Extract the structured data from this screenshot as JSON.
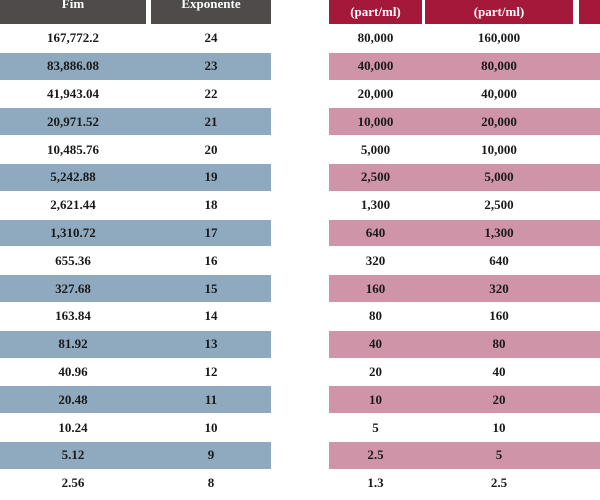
{
  "left_table": {
    "headers": [
      "Fim",
      "Exponente"
    ],
    "rows": [
      {
        "fim": "167,772.2",
        "exp": "24"
      },
      {
        "fim": "83,886.08",
        "exp": "23"
      },
      {
        "fim": "41,943.04",
        "exp": "22"
      },
      {
        "fim": "20,971.52",
        "exp": "21"
      },
      {
        "fim": "10,485.76",
        "exp": "20"
      },
      {
        "fim": "5,242.88",
        "exp": "19"
      },
      {
        "fim": "2,621.44",
        "exp": "18"
      },
      {
        "fim": "1,310.72",
        "exp": "17"
      },
      {
        "fim": "655.36",
        "exp": "16"
      },
      {
        "fim": "327.68",
        "exp": "15"
      },
      {
        "fim": "163.84",
        "exp": "14"
      },
      {
        "fim": "81.92",
        "exp": "13"
      },
      {
        "fim": "40.96",
        "exp": "12"
      },
      {
        "fim": "20.48",
        "exp": "11"
      },
      {
        "fim": "10.24",
        "exp": "10"
      },
      {
        "fim": "5.12",
        "exp": "9"
      },
      {
        "fim": "2.56",
        "exp": "8"
      }
    ]
  },
  "right_table": {
    "headers": [
      "(part/ml)",
      "(part/ml)",
      ""
    ],
    "rows": [
      {
        "a": "80,000",
        "b": "160,000"
      },
      {
        "a": "40,000",
        "b": "80,000"
      },
      {
        "a": "20,000",
        "b": "40,000"
      },
      {
        "a": "10,000",
        "b": "20,000"
      },
      {
        "a": "5,000",
        "b": "10,000"
      },
      {
        "a": "2,500",
        "b": "5,000"
      },
      {
        "a": "1,300",
        "b": "2,500"
      },
      {
        "a": "640",
        "b": "1,300"
      },
      {
        "a": "320",
        "b": "640"
      },
      {
        "a": "160",
        "b": "320"
      },
      {
        "a": "80",
        "b": "160"
      },
      {
        "a": "40",
        "b": "80"
      },
      {
        "a": "20",
        "b": "40"
      },
      {
        "a": "10",
        "b": "20"
      },
      {
        "a": "5",
        "b": "10"
      },
      {
        "a": "2.5",
        "b": "5"
      },
      {
        "a": "1.3",
        "b": "2.5"
      }
    ]
  },
  "colors": {
    "left_header": "#4e4b4a",
    "left_shade": "#8fa9be",
    "right_header": "#a4183a",
    "right_shade": "#cf94a8"
  }
}
